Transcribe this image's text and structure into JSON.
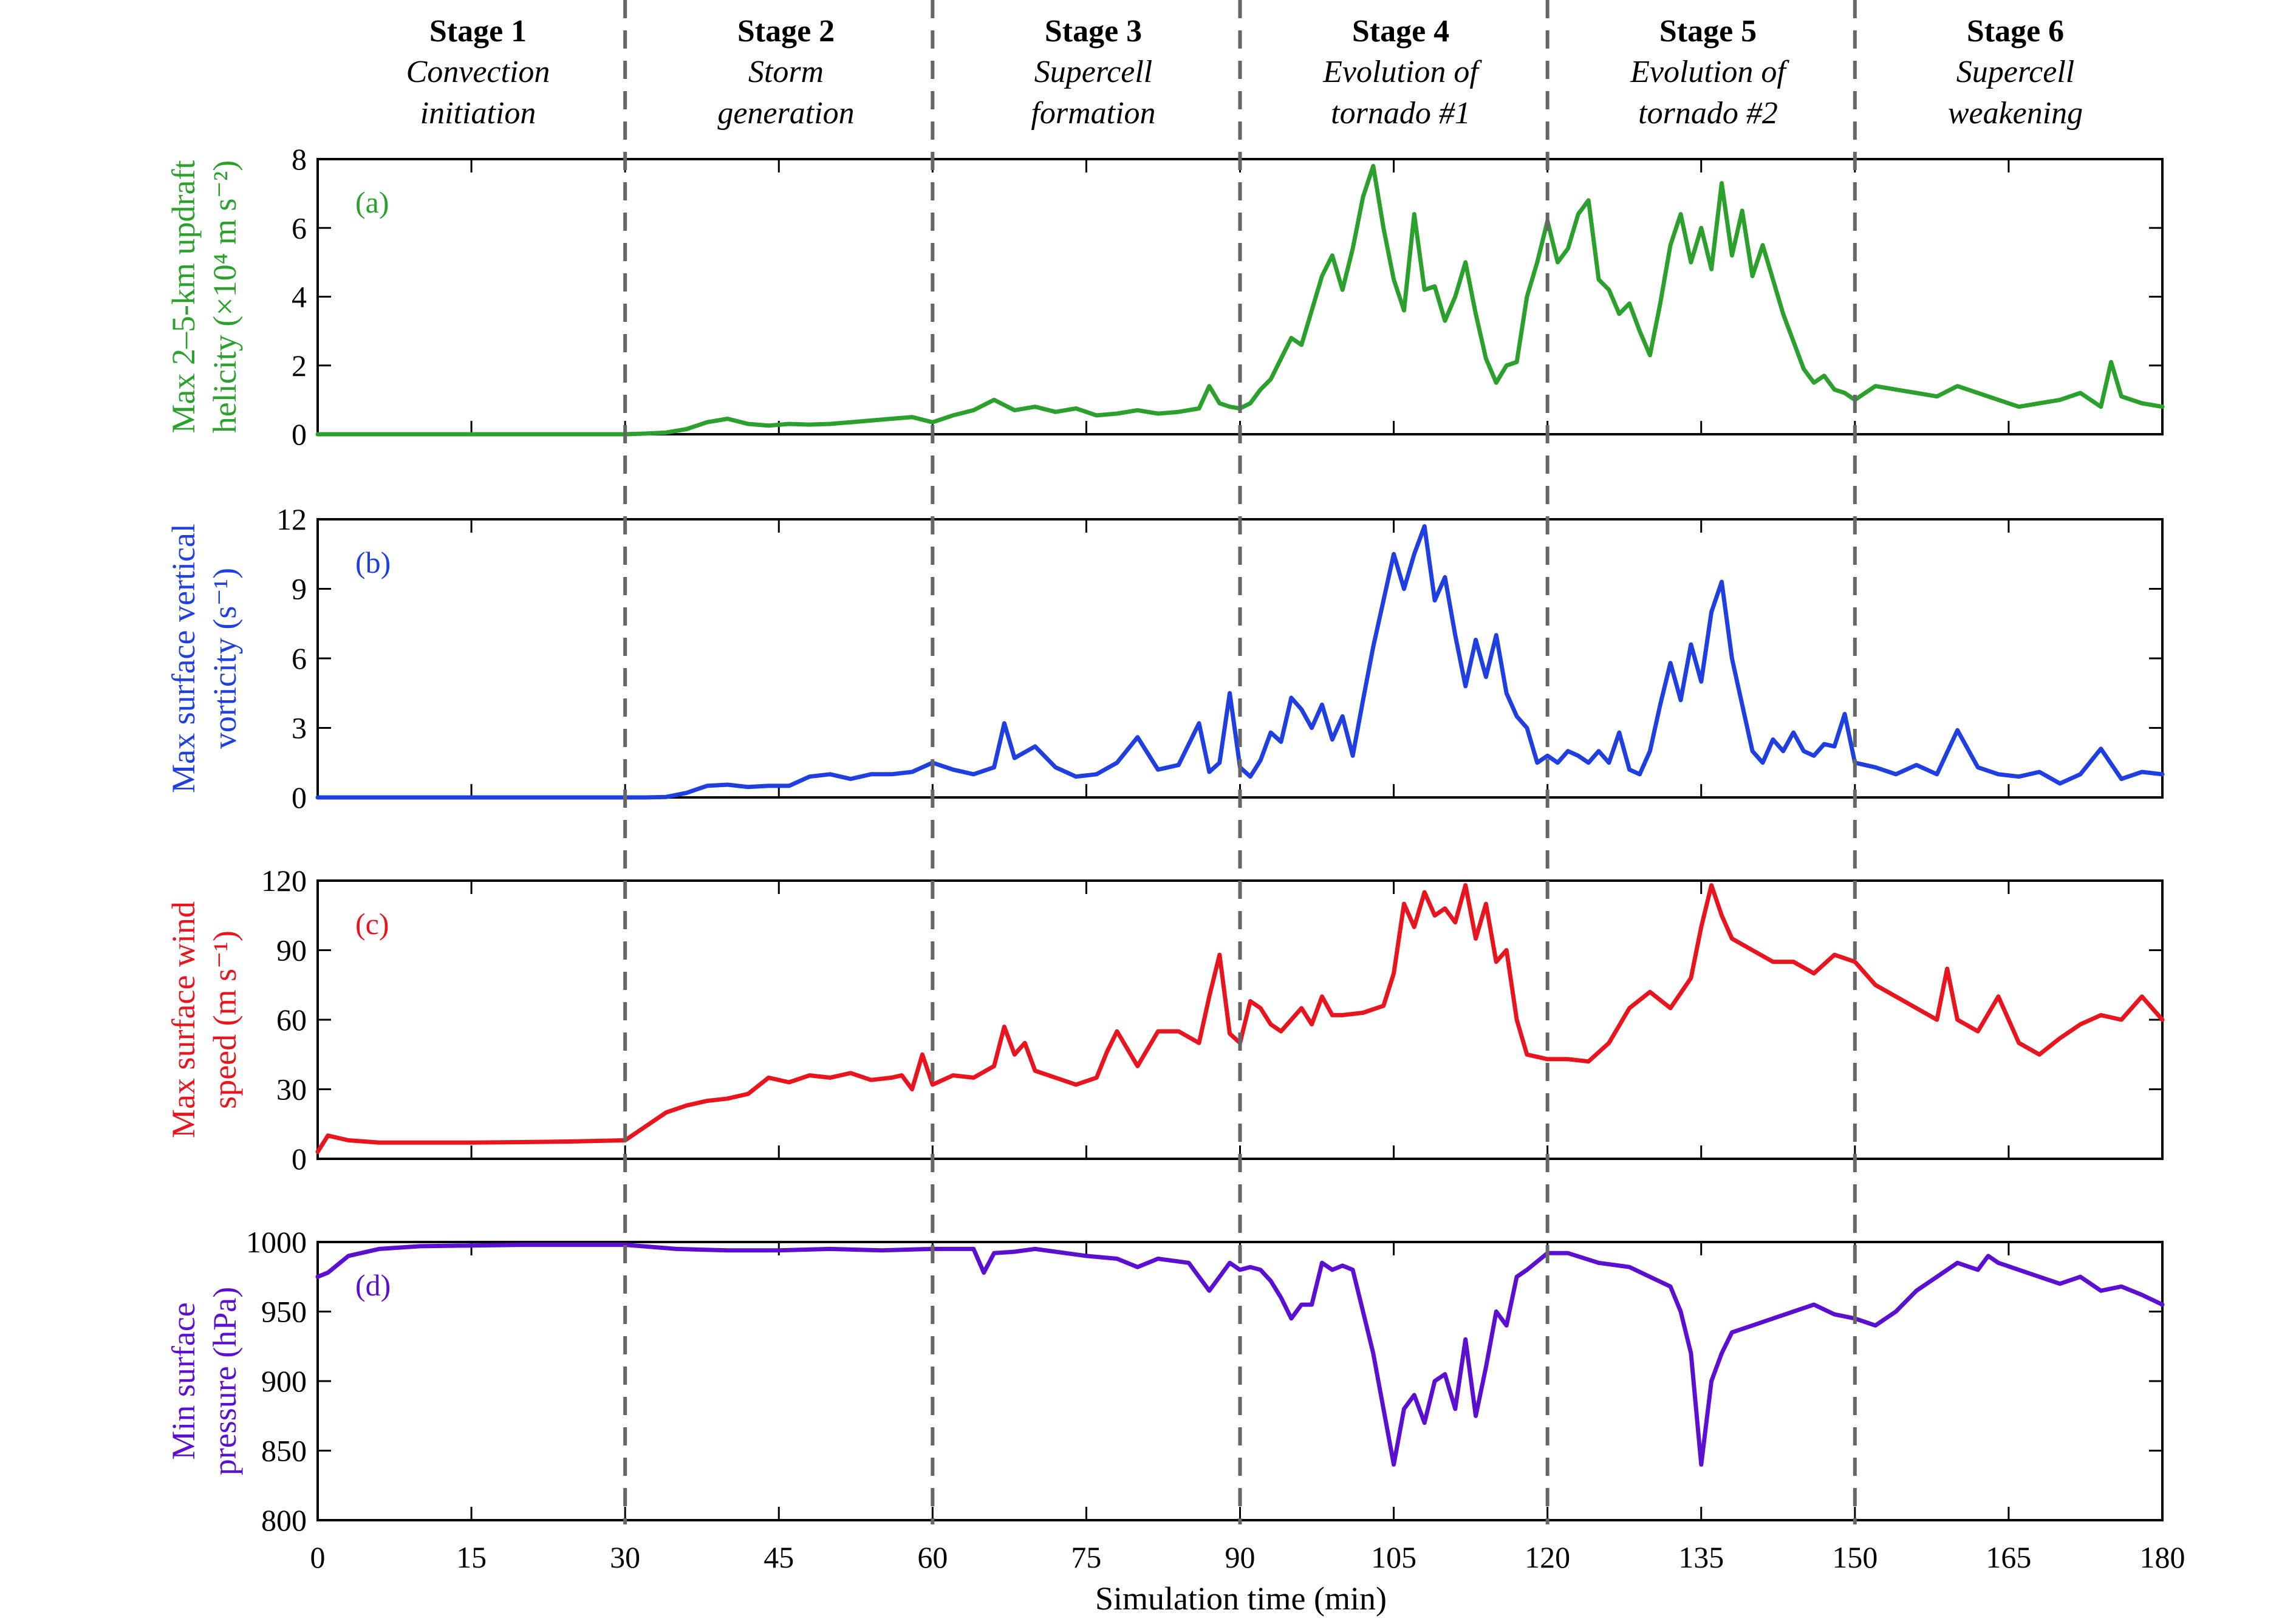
{
  "stages": [
    {
      "label": "Stage 1",
      "desc1": "Convection",
      "desc2": "initiation"
    },
    {
      "label": "Stage 2",
      "desc1": "Storm",
      "desc2": "generation"
    },
    {
      "label": "Stage 3",
      "desc1": "Supercell",
      "desc2": "formation"
    },
    {
      "label": "Stage 4",
      "desc1": "Evolution of",
      "desc2": "tornado #1"
    },
    {
      "label": "Stage 5",
      "desc1": "Evolution of",
      "desc2": "tornado #2"
    },
    {
      "label": "Stage 6",
      "desc1": "Supercell",
      "desc2": "weakening"
    }
  ],
  "xlabel": "Simulation time (min)",
  "chart_data": {
    "type": "line",
    "xlim": [
      0,
      180
    ],
    "xticks": [
      0,
      15,
      30,
      45,
      60,
      75,
      90,
      105,
      120,
      135,
      150,
      165,
      180
    ],
    "stage_boundaries": [
      30,
      60,
      90,
      120,
      150
    ],
    "grid": false,
    "panels": [
      {
        "id": "a",
        "panel_label": "(a)",
        "ylabel_line1": "Max 2–5-km updraft",
        "ylabel_line2": "helicity (×10⁴ m s⁻²)",
        "color": "#2ca02c",
        "ylim": [
          0,
          8
        ],
        "yticks": [
          0,
          2,
          4,
          6,
          8
        ],
        "series": {
          "x": [
            0,
            10,
            20,
            30,
            32,
            34,
            36,
            38,
            40,
            42,
            44,
            46,
            48,
            50,
            52,
            54,
            56,
            58,
            60,
            62,
            64,
            66,
            68,
            70,
            72,
            74,
            76,
            78,
            80,
            82,
            84,
            86,
            87,
            88,
            89,
            90,
            91,
            92,
            93,
            94,
            95,
            96,
            97,
            98,
            99,
            100,
            101,
            102,
            103,
            104,
            105,
            106,
            107,
            108,
            109,
            110,
            111,
            112,
            113,
            114,
            115,
            116,
            117,
            118,
            119,
            120,
            121,
            122,
            123,
            124,
            125,
            126,
            127,
            128,
            129,
            130,
            131,
            132,
            133,
            134,
            135,
            136,
            137,
            138,
            139,
            140,
            141,
            142,
            143,
            144,
            145,
            146,
            147,
            148,
            149,
            150,
            152,
            154,
            156,
            158,
            160,
            162,
            164,
            166,
            168,
            170,
            172,
            174,
            175,
            176,
            178,
            180
          ],
          "y": [
            0,
            0,
            0,
            0,
            0.02,
            0.05,
            0.15,
            0.35,
            0.45,
            0.3,
            0.25,
            0.3,
            0.28,
            0.3,
            0.35,
            0.4,
            0.45,
            0.5,
            0.35,
            0.55,
            0.7,
            1.0,
            0.7,
            0.8,
            0.65,
            0.75,
            0.55,
            0.6,
            0.7,
            0.6,
            0.65,
            0.75,
            1.4,
            0.9,
            0.8,
            0.75,
            0.9,
            1.3,
            1.6,
            2.2,
            2.8,
            2.6,
            3.6,
            4.6,
            5.2,
            4.2,
            5.4,
            6.9,
            7.8,
            6.0,
            4.5,
            3.6,
            6.4,
            4.2,
            4.3,
            3.3,
            4.0,
            5.0,
            3.5,
            2.2,
            1.5,
            2.0,
            2.1,
            4.0,
            5.0,
            6.2,
            5.0,
            5.4,
            6.4,
            6.8,
            4.5,
            4.2,
            3.5,
            3.8,
            3.0,
            2.3,
            3.8,
            5.5,
            6.4,
            5.0,
            6.0,
            4.8,
            7.3,
            5.2,
            6.5,
            4.6,
            5.5,
            4.5,
            3.5,
            2.7,
            1.9,
            1.5,
            1.7,
            1.3,
            1.2,
            1.0,
            1.4,
            1.3,
            1.2,
            1.1,
            1.4,
            1.2,
            1.0,
            0.8,
            0.9,
            1.0,
            1.2,
            0.8,
            2.1,
            1.1,
            0.9,
            0.8
          ]
        }
      },
      {
        "id": "b",
        "panel_label": "(b)",
        "ylabel_line1": "Max surface vertical",
        "ylabel_line2": "vorticity (s⁻¹)",
        "color": "#1f3fe0",
        "ylim": [
          0,
          12
        ],
        "yticks": [
          0,
          3,
          6,
          9,
          12
        ],
        "series": {
          "x": [
            0,
            10,
            20,
            30,
            32,
            34,
            36,
            38,
            40,
            42,
            44,
            46,
            48,
            50,
            52,
            54,
            56,
            58,
            60,
            62,
            64,
            66,
            67,
            68,
            70,
            72,
            74,
            76,
            78,
            80,
            82,
            84,
            86,
            87,
            88,
            89,
            90,
            91,
            92,
            93,
            94,
            95,
            96,
            97,
            98,
            99,
            100,
            101,
            102,
            103,
            104,
            105,
            106,
            107,
            108,
            109,
            110,
            111,
            112,
            113,
            114,
            115,
            116,
            117,
            118,
            119,
            120,
            121,
            122,
            123,
            124,
            125,
            126,
            127,
            128,
            129,
            130,
            131,
            132,
            133,
            134,
            135,
            136,
            137,
            138,
            139,
            140,
            141,
            142,
            143,
            144,
            145,
            146,
            147,
            148,
            149,
            150,
            152,
            154,
            156,
            158,
            160,
            162,
            164,
            166,
            168,
            170,
            172,
            174,
            176,
            178,
            180
          ],
          "y": [
            0,
            0,
            0,
            0,
            0,
            0.02,
            0.2,
            0.5,
            0.55,
            0.45,
            0.5,
            0.5,
            0.9,
            1.0,
            0.8,
            1.0,
            1.0,
            1.1,
            1.5,
            1.2,
            1.0,
            1.3,
            3.2,
            1.7,
            2.2,
            1.3,
            0.9,
            1.0,
            1.5,
            2.6,
            1.2,
            1.4,
            3.2,
            1.1,
            1.5,
            4.5,
            1.3,
            0.9,
            1.6,
            2.8,
            2.4,
            4.3,
            3.8,
            3.0,
            4.0,
            2.5,
            3.5,
            1.8,
            4.2,
            6.5,
            8.5,
            10.5,
            9.0,
            10.5,
            11.7,
            8.5,
            9.5,
            7.0,
            4.8,
            6.8,
            5.2,
            7.0,
            4.5,
            3.5,
            3.0,
            1.5,
            1.8,
            1.5,
            2.0,
            1.8,
            1.5,
            2.0,
            1.5,
            2.8,
            1.2,
            1.0,
            2.0,
            4.0,
            5.8,
            4.2,
            6.6,
            5.0,
            8.0,
            9.3,
            6.0,
            4.0,
            2.0,
            1.5,
            2.5,
            2.0,
            2.8,
            2.0,
            1.8,
            2.3,
            2.2,
            3.6,
            1.5,
            1.3,
            1.0,
            1.4,
            1.0,
            2.9,
            1.3,
            1.0,
            0.9,
            1.1,
            0.6,
            1.0,
            2.1,
            0.8,
            1.1,
            1.0
          ]
        }
      },
      {
        "id": "c",
        "panel_label": "(c)",
        "ylabel_line1": "Max surface wind",
        "ylabel_line2": "speed (m s⁻¹)",
        "color": "#e8141e",
        "ylim": [
          0,
          120
        ],
        "yticks": [
          0,
          30,
          60,
          90,
          120
        ],
        "series": {
          "x": [
            0,
            1,
            3,
            6,
            10,
            15,
            20,
            25,
            30,
            32,
            34,
            36,
            38,
            40,
            42,
            44,
            46,
            48,
            50,
            52,
            54,
            56,
            57,
            58,
            59,
            60,
            62,
            64,
            66,
            67,
            68,
            69,
            70,
            72,
            74,
            76,
            77,
            78,
            80,
            82,
            84,
            86,
            87,
            88,
            89,
            90,
            91,
            92,
            93,
            94,
            95,
            96,
            97,
            98,
            99,
            100,
            102,
            104,
            105,
            106,
            107,
            108,
            109,
            110,
            111,
            112,
            113,
            114,
            115,
            116,
            117,
            118,
            120,
            122,
            124,
            126,
            128,
            130,
            132,
            134,
            135,
            136,
            137,
            138,
            140,
            142,
            144,
            146,
            148,
            150,
            152,
            154,
            156,
            158,
            159,
            160,
            162,
            164,
            166,
            168,
            170,
            172,
            174,
            176,
            178,
            180
          ],
          "y": [
            3,
            10,
            8,
            7,
            7,
            7,
            7.2,
            7.5,
            8,
            14,
            20,
            23,
            25,
            26,
            28,
            35,
            33,
            36,
            35,
            37,
            34,
            35,
            36,
            30,
            45,
            32,
            36,
            35,
            40,
            57,
            45,
            50,
            38,
            35,
            32,
            35,
            46,
            55,
            40,
            55,
            55,
            50,
            70,
            88,
            54,
            50,
            68,
            65,
            58,
            55,
            60,
            65,
            58,
            70,
            62,
            62,
            63,
            66,
            80,
            110,
            100,
            115,
            105,
            108,
            102,
            118,
            95,
            110,
            85,
            90,
            60,
            45,
            43,
            43,
            42,
            50,
            65,
            72,
            65,
            78,
            100,
            118,
            105,
            95,
            90,
            85,
            85,
            80,
            88,
            85,
            75,
            70,
            65,
            60,
            82,
            60,
            55,
            70,
            50,
            45,
            52,
            58,
            62,
            60,
            70,
            60
          ]
        }
      },
      {
        "id": "d",
        "panel_label": "(d)",
        "ylabel_line1": "Min surface",
        "ylabel_line2": "pressure (hPa)",
        "color": "#5b0fd1",
        "ylim": [
          800,
          1000
        ],
        "yticks": [
          800,
          850,
          900,
          950,
          1000
        ],
        "series": {
          "x": [
            0,
            1,
            3,
            6,
            10,
            20,
            30,
            35,
            40,
            45,
            50,
            55,
            60,
            62,
            64,
            65,
            66,
            68,
            70,
            72,
            75,
            78,
            80,
            82,
            85,
            86,
            87,
            88,
            89,
            90,
            91,
            92,
            93,
            94,
            95,
            96,
            97,
            98,
            99,
            100,
            101,
            102,
            103,
            104,
            105,
            106,
            107,
            108,
            109,
            110,
            111,
            112,
            113,
            114,
            115,
            116,
            117,
            118,
            120,
            122,
            125,
            128,
            130,
            132,
            133,
            134,
            135,
            136,
            137,
            138,
            140,
            142,
            144,
            146,
            148,
            150,
            152,
            154,
            156,
            158,
            160,
            162,
            163,
            164,
            166,
            168,
            170,
            172,
            174,
            176,
            178,
            180
          ],
          "y": [
            975,
            978,
            990,
            995,
            997,
            998,
            998,
            995,
            994,
            994,
            995,
            994,
            995,
            995,
            995,
            978,
            992,
            993,
            995,
            993,
            990,
            988,
            982,
            988,
            985,
            975,
            965,
            975,
            985,
            980,
            982,
            980,
            972,
            960,
            945,
            955,
            955,
            985,
            980,
            983,
            980,
            950,
            920,
            880,
            840,
            880,
            890,
            870,
            900,
            905,
            880,
            930,
            875,
            910,
            950,
            940,
            975,
            980,
            992,
            992,
            985,
            982,
            975,
            968,
            950,
            920,
            840,
            900,
            920,
            935,
            940,
            945,
            950,
            955,
            948,
            945,
            940,
            950,
            965,
            975,
            985,
            980,
            990,
            985,
            980,
            975,
            970,
            975,
            965,
            968,
            962,
            955
          ]
        }
      }
    ]
  }
}
